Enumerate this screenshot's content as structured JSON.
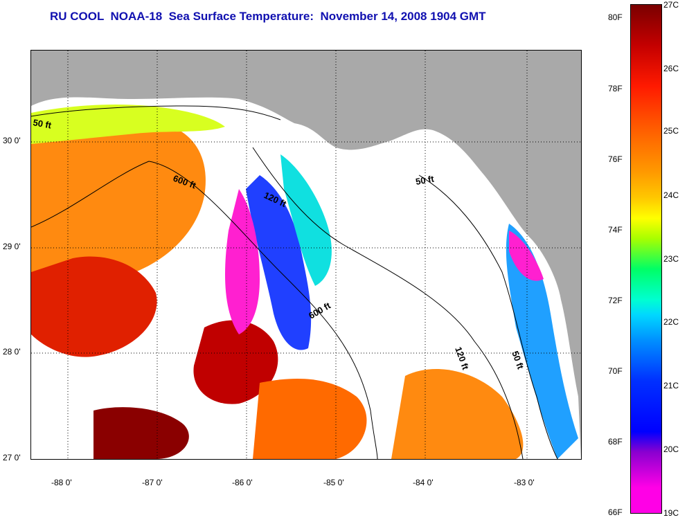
{
  "title": "RU COOL  NOAA-18  Sea Surface Temperature:  November 14, 2008 1904 GMT",
  "map": {
    "lat_labels": [
      "30 0'",
      "29 0'",
      "28 0'",
      "27 0'"
    ],
    "lon_labels": [
      "-88 0'",
      "-87 0'",
      "-86 0'",
      "-85 0'",
      "-84 0'",
      "-83 0'"
    ],
    "contour_labels": [
      "50 ft",
      "600 ft",
      "120 ft",
      "50 ft",
      "600 ft",
      "120 ft",
      "50 ft"
    ]
  },
  "colorbar": {
    "fahrenheit": [
      "80F",
      "78F",
      "76F",
      "74F",
      "72F",
      "70F",
      "68F",
      "66F"
    ],
    "celsius": [
      "27C",
      "26C",
      "25C",
      "24C",
      "23C",
      "22C",
      "21C",
      "20C",
      "19C"
    ]
  },
  "colors": {
    "title": "#1010b0",
    "land": "#a9a9a9",
    "cloud": "#ffffff"
  }
}
